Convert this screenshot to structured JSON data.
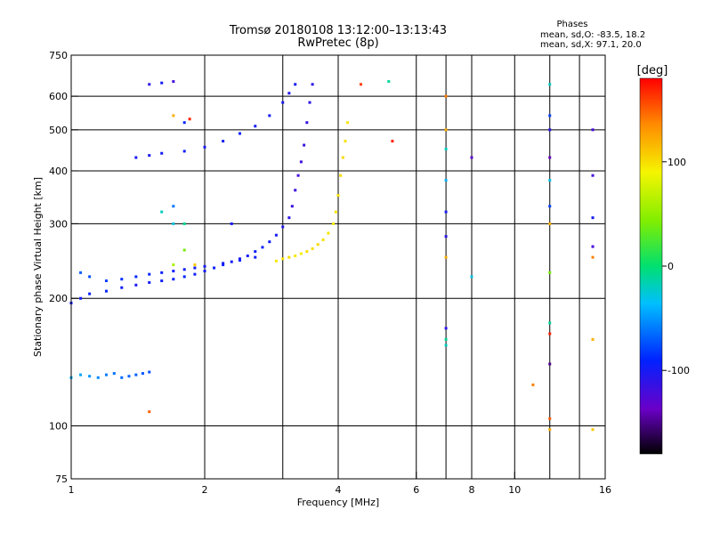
{
  "chart_data": {
    "type": "scatter",
    "title": "Tromsø 20180108 13:12:00–13:13:43",
    "subtitle": "RwPretec (8p)",
    "xlabel": "Frequency [MHz]",
    "ylabel": "Stationary phase Virtual Height [km]",
    "x_scale": "log",
    "y_scale": "log",
    "xlim": [
      1,
      16
    ],
    "ylim": [
      75,
      750
    ],
    "x_ticks": [
      {
        "value": 1,
        "label": "1"
      },
      {
        "value": 2,
        "label": "2"
      },
      {
        "value": 4,
        "label": "4"
      },
      {
        "value": 6,
        "label": "6"
      },
      {
        "value": 8,
        "label": "8"
      },
      {
        "value": 10,
        "label": "10"
      },
      {
        "value": 16,
        "label": "16"
      }
    ],
    "y_ticks": [
      {
        "value": 75,
        "label": "75"
      },
      {
        "value": 100,
        "label": "100"
      },
      {
        "value": 200,
        "label": "200"
      },
      {
        "value": 300,
        "label": "300"
      },
      {
        "value": 400,
        "label": "400"
      },
      {
        "value": 500,
        "label": "500"
      },
      {
        "value": 600,
        "label": "600"
      },
      {
        "value": 750,
        "label": "750"
      }
    ],
    "grid_x": [
      2,
      3,
      4,
      6,
      7,
      8,
      10,
      12,
      14
    ],
    "grid_y": [
      100,
      200,
      300,
      400,
      500,
      600
    ],
    "phase_box": {
      "header": "Phases",
      "line_o": "mean, sd,O: -83.5, 18.2",
      "line_x": "mean, sd,X:  97.1, 20.0"
    },
    "colorbar": {
      "unit": "[deg]",
      "min": -180,
      "max": 180,
      "ticks": [
        {
          "value": 100,
          "label": "100"
        },
        {
          "value": 0,
          "label": "0"
        },
        {
          "value": -100,
          "label": "-100"
        }
      ]
    },
    "series": [
      {
        "trace": "O-mode F-layer trace",
        "points": [
          [
            1.0,
            195,
            -95
          ],
          [
            1.05,
            200,
            -98
          ],
          [
            1.1,
            205,
            -92
          ],
          [
            1.2,
            208,
            -90
          ],
          [
            1.3,
            212,
            -95
          ],
          [
            1.4,
            215,
            -100
          ],
          [
            1.5,
            218,
            -98
          ],
          [
            1.6,
            220,
            -96
          ],
          [
            1.7,
            222,
            -92
          ],
          [
            1.8,
            225,
            -90
          ],
          [
            1.9,
            228,
            -95
          ],
          [
            2.0,
            232,
            -98
          ],
          [
            2.1,
            236,
            -94
          ],
          [
            2.2,
            240,
            -92
          ],
          [
            2.3,
            244,
            -96
          ],
          [
            2.4,
            248,
            -100
          ],
          [
            2.5,
            252,
            -98
          ],
          [
            2.6,
            258,
            -95
          ],
          [
            2.7,
            264,
            -92
          ],
          [
            2.8,
            272,
            -96
          ],
          [
            2.9,
            282,
            -100
          ],
          [
            3.0,
            295,
            -105
          ],
          [
            3.1,
            310,
            -110
          ],
          [
            3.15,
            330,
            -115
          ],
          [
            3.2,
            360,
            -118
          ],
          [
            3.25,
            390,
            -120
          ],
          [
            3.3,
            420,
            -118
          ],
          [
            3.35,
            460,
            -115
          ],
          [
            3.4,
            520,
            -112
          ],
          [
            3.45,
            580,
            -110
          ],
          [
            3.5,
            640,
            -108
          ]
        ]
      },
      {
        "trace": "O-mode lower branch",
        "points": [
          [
            1.05,
            230,
            -70
          ],
          [
            1.1,
            225,
            -75
          ],
          [
            1.2,
            220,
            -80
          ],
          [
            1.3,
            222,
            -85
          ],
          [
            1.4,
            225,
            -88
          ],
          [
            1.5,
            228,
            -90
          ],
          [
            1.6,
            230,
            -92
          ],
          [
            1.7,
            232,
            -95
          ],
          [
            1.8,
            234,
            -96
          ],
          [
            1.9,
            236,
            -98
          ],
          [
            2.0,
            238,
            -100
          ],
          [
            2.2,
            242,
            -98
          ],
          [
            2.4,
            246,
            -96
          ],
          [
            2.6,
            250,
            -94
          ]
        ]
      },
      {
        "trace": "X-mode F-layer trace",
        "points": [
          [
            2.9,
            245,
            95
          ],
          [
            3.0,
            248,
            98
          ],
          [
            3.1,
            250,
            100
          ],
          [
            3.2,
            252,
            96
          ],
          [
            3.3,
            255,
            94
          ],
          [
            3.4,
            258,
            98
          ],
          [
            3.5,
            262,
            100
          ],
          [
            3.6,
            268,
            102
          ],
          [
            3.7,
            275,
            98
          ],
          [
            3.8,
            285,
            96
          ],
          [
            3.9,
            300,
            94
          ],
          [
            3.95,
            320,
            96
          ],
          [
            4.0,
            350,
            98
          ],
          [
            4.05,
            390,
            100
          ],
          [
            4.1,
            430,
            102
          ],
          [
            4.15,
            470,
            98
          ],
          [
            4.2,
            520,
            96
          ]
        ]
      },
      {
        "trace": "Upper echoes",
        "points": [
          [
            1.4,
            430,
            -100
          ],
          [
            1.5,
            435,
            -102
          ],
          [
            1.6,
            440,
            -98
          ],
          [
            1.8,
            445,
            -96
          ],
          [
            2.0,
            455,
            -100
          ],
          [
            2.2,
            470,
            -98
          ],
          [
            2.4,
            490,
            -95
          ],
          [
            2.6,
            510,
            -98
          ],
          [
            2.8,
            540,
            -100
          ],
          [
            3.0,
            580,
            -102
          ],
          [
            3.1,
            610,
            -105
          ],
          [
            3.2,
            640,
            -100
          ]
        ]
      },
      {
        "trace": "E-layer echoes",
        "points": [
          [
            1.0,
            130,
            -40
          ],
          [
            1.05,
            132,
            -45
          ],
          [
            1.1,
            131,
            -50
          ],
          [
            1.15,
            130,
            -55
          ],
          [
            1.2,
            132,
            -60
          ],
          [
            1.25,
            133,
            -62
          ],
          [
            1.3,
            130,
            -65
          ],
          [
            1.35,
            131,
            -68
          ],
          [
            1.4,
            132,
            -70
          ],
          [
            1.45,
            133,
            -72
          ],
          [
            1.5,
            134,
            -75
          ]
        ]
      },
      {
        "trace": "Scattered echoes",
        "points": [
          [
            7.0,
            600,
            140
          ],
          [
            7.0,
            500,
            120
          ],
          [
            7.0,
            450,
            -20
          ],
          [
            7.0,
            380,
            -40
          ],
          [
            7.0,
            320,
            -100
          ],
          [
            7.0,
            280,
            -110
          ],
          [
            7.0,
            250,
            120
          ],
          [
            7.0,
            170,
            -110
          ],
          [
            7.0,
            160,
            -10
          ],
          [
            7.0,
            155,
            -20
          ],
          [
            8.0,
            430,
            -130
          ],
          [
            8.0,
            225,
            -30
          ],
          [
            11.0,
            125,
            140
          ],
          [
            12.0,
            640,
            -20
          ],
          [
            12.0,
            540,
            -80
          ],
          [
            12.0,
            500,
            -110
          ],
          [
            12.0,
            430,
            -140
          ],
          [
            12.0,
            380,
            -30
          ],
          [
            12.0,
            330,
            -80
          ],
          [
            12.0,
            300,
            120
          ],
          [
            12.0,
            230,
            40
          ],
          [
            12.0,
            175,
            -10
          ],
          [
            12.0,
            165,
            170
          ],
          [
            12.0,
            140,
            -150
          ],
          [
            12.0,
            104,
            150
          ],
          [
            12.0,
            98,
            120
          ],
          [
            15.0,
            500,
            -120
          ],
          [
            15.0,
            390,
            -120
          ],
          [
            15.0,
            310,
            -100
          ],
          [
            15.0,
            265,
            -120
          ],
          [
            15.0,
            250,
            140
          ],
          [
            15.0,
            160,
            120
          ],
          [
            15.0,
            98,
            110
          ],
          [
            5.2,
            650,
            -10
          ],
          [
            5.3,
            470,
            170
          ],
          [
            4.5,
            640,
            160
          ],
          [
            1.5,
            108,
            150
          ],
          [
            1.7,
            240,
            60
          ],
          [
            1.8,
            260,
            40
          ],
          [
            1.9,
            240,
            110
          ],
          [
            1.6,
            320,
            -20
          ],
          [
            1.7,
            330,
            -60
          ],
          [
            1.7,
            300,
            -30
          ],
          [
            1.8,
            300,
            -10
          ],
          [
            2.3,
            300,
            -100
          ],
          [
            1.5,
            640,
            -110
          ],
          [
            1.6,
            645,
            -100
          ],
          [
            1.7,
            650,
            -120
          ],
          [
            1.7,
            540,
            120
          ],
          [
            1.8,
            520,
            -90
          ],
          [
            1.85,
            530,
            170
          ]
        ]
      }
    ]
  }
}
